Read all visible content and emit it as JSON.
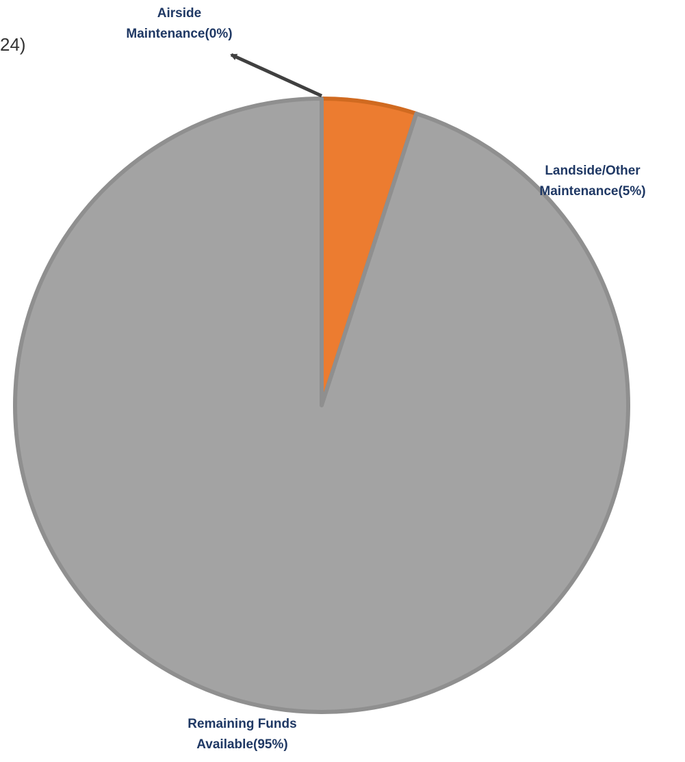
{
  "title_fragment": "24)",
  "colors": {
    "label_text": "#1f3864",
    "remaining": "#a3a3a3",
    "remaining_border": "#8f8f8f",
    "landside": "#ec7c30",
    "landside_border": "#d06a20",
    "leader": "#404040"
  },
  "chart_data": {
    "type": "pie",
    "start_angle_deg": 0,
    "direction": "clockwise",
    "slices": [
      {
        "label_lines": [
          "Airside",
          "Maintenance(0%)"
        ],
        "value": 0,
        "color": "#7f7f7f"
      },
      {
        "label_lines": [
          "Landside/Other",
          "Maintenance(5%)"
        ],
        "value": 5,
        "color": "#ec7c30"
      },
      {
        "label_lines": [
          "Remaining Funds",
          "Available(95%)"
        ],
        "value": 95,
        "color": "#a3a3a3"
      }
    ]
  }
}
